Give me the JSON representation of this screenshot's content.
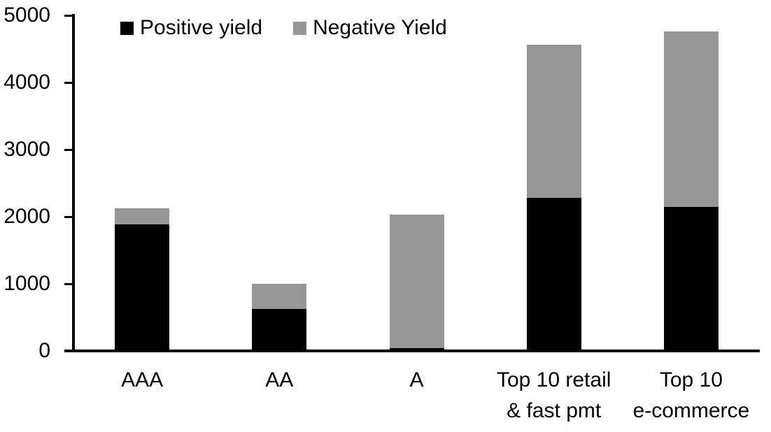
{
  "chart_data": {
    "type": "bar",
    "stacked": true,
    "categories": [
      "AAA",
      "AA",
      "A",
      "Top 10 retail\n& fast pmt",
      "Top 10\ne-commerce"
    ],
    "series": [
      {
        "name": "Positive yield",
        "color": "#000000",
        "values": [
          1890,
          620,
          45,
          2285,
          2150
        ]
      },
      {
        "name": "Negative Yield",
        "color": "#969696",
        "values": [
          240,
          380,
          1990,
          2275,
          2610
        ]
      }
    ],
    "ylim": [
      0,
      5000
    ],
    "yticks": [
      0,
      1000,
      2000,
      3000,
      4000,
      5000
    ],
    "grid": false,
    "legend_position": "top-left"
  },
  "colors": {
    "positive": "#000000",
    "negative": "#969696",
    "axis": "#000000",
    "background": "#ffffff",
    "text": "#000000"
  }
}
